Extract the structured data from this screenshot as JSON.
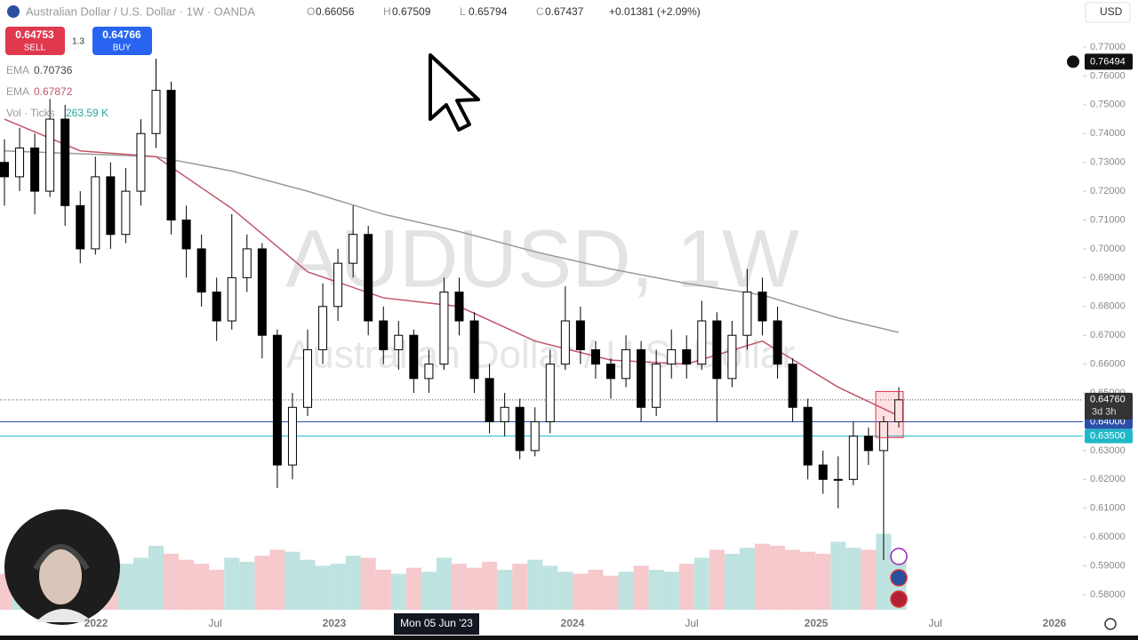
{
  "header": {
    "title": "Australian Dollar / U.S. Dollar · 1W · OANDA",
    "ohlc": [
      {
        "key": "O",
        "value": "0.66056"
      },
      {
        "key": "H",
        "value": "0.67509"
      },
      {
        "key": "L",
        "value": "0.65794"
      },
      {
        "key": "C",
        "value": "0.67437"
      }
    ],
    "change": "+0.01381 (+2.09%)",
    "currency": "USD"
  },
  "trade": {
    "sell_price": "0.64753",
    "sell_label": "SELL",
    "spread": "1.3",
    "buy_price": "0.64766",
    "buy_label": "BUY"
  },
  "indicators": [
    {
      "name": "EMA",
      "value": "0.70736"
    },
    {
      "name": "EMA",
      "value": "0.67872"
    },
    {
      "name": "Vol · Ticks",
      "value": "263.59 K"
    }
  ],
  "watermark": {
    "symbol": "AUDUSD, 1W",
    "name": "Australian Dollar / U.S. Dollar"
  },
  "chart": {
    "ylim": [
      0.58,
      0.77
    ],
    "yticks": [
      {
        "value": 0.77,
        "label": "0.77000"
      },
      {
        "value": 0.76,
        "label": "0.76000"
      },
      {
        "value": 0.75,
        "label": "0.75000"
      },
      {
        "value": 0.74,
        "label": "0.74000"
      },
      {
        "value": 0.73,
        "label": "0.73000"
      },
      {
        "value": 0.72,
        "label": "0.72000"
      },
      {
        "value": 0.71,
        "label": "0.71000"
      },
      {
        "value": 0.7,
        "label": "0.70000"
      },
      {
        "value": 0.69,
        "label": "0.69000"
      },
      {
        "value": 0.68,
        "label": "0.68000"
      },
      {
        "value": 0.67,
        "label": "0.67000"
      },
      {
        "value": 0.66,
        "label": "0.66000"
      },
      {
        "value": 0.65,
        "label": "0.65000"
      },
      {
        "value": 0.63,
        "label": "0.63000"
      },
      {
        "value": 0.62,
        "label": "0.62000"
      },
      {
        "value": 0.61,
        "label": "0.61000"
      },
      {
        "value": 0.6,
        "label": "0.60000"
      },
      {
        "value": 0.59,
        "label": "0.59000"
      },
      {
        "value": 0.58,
        "label": "0.58000"
      }
    ],
    "xlabels": [
      "2022",
      "Jul",
      "2023",
      "2024",
      "Jul",
      "2025",
      "Jul",
      "2026"
    ],
    "crosshair_date": "Mon 05 Jun '23",
    "candles": [
      [
        0.73,
        0.738,
        0.715,
        0.725
      ],
      [
        0.725,
        0.742,
        0.72,
        0.735
      ],
      [
        0.735,
        0.74,
        0.712,
        0.72
      ],
      [
        0.72,
        0.752,
        0.718,
        0.745
      ],
      [
        0.745,
        0.75,
        0.708,
        0.715
      ],
      [
        0.715,
        0.72,
        0.695,
        0.7
      ],
      [
        0.7,
        0.732,
        0.698,
        0.725
      ],
      [
        0.725,
        0.73,
        0.7,
        0.705
      ],
      [
        0.705,
        0.728,
        0.702,
        0.72
      ],
      [
        0.72,
        0.745,
        0.715,
        0.74
      ],
      [
        0.74,
        0.766,
        0.735,
        0.755
      ],
      [
        0.755,
        0.758,
        0.705,
        0.71
      ],
      [
        0.71,
        0.715,
        0.69,
        0.7
      ],
      [
        0.7,
        0.705,
        0.68,
        0.685
      ],
      [
        0.685,
        0.69,
        0.668,
        0.675
      ],
      [
        0.675,
        0.712,
        0.672,
        0.69
      ],
      [
        0.69,
        0.705,
        0.685,
        0.7
      ],
      [
        0.7,
        0.702,
        0.662,
        0.67
      ],
      [
        0.67,
        0.672,
        0.617,
        0.625
      ],
      [
        0.625,
        0.65,
        0.62,
        0.645
      ],
      [
        0.645,
        0.672,
        0.642,
        0.665
      ],
      [
        0.665,
        0.688,
        0.66,
        0.68
      ],
      [
        0.68,
        0.7,
        0.675,
        0.695
      ],
      [
        0.695,
        0.715,
        0.69,
        0.705
      ],
      [
        0.705,
        0.708,
        0.67,
        0.675
      ],
      [
        0.675,
        0.68,
        0.66,
        0.665
      ],
      [
        0.665,
        0.675,
        0.658,
        0.67
      ],
      [
        0.67,
        0.672,
        0.65,
        0.655
      ],
      [
        0.655,
        0.665,
        0.65,
        0.66
      ],
      [
        0.66,
        0.69,
        0.658,
        0.685
      ],
      [
        0.685,
        0.69,
        0.67,
        0.675
      ],
      [
        0.675,
        0.678,
        0.65,
        0.655
      ],
      [
        0.655,
        0.66,
        0.636,
        0.64
      ],
      [
        0.64,
        0.65,
        0.635,
        0.645
      ],
      [
        0.645,
        0.648,
        0.627,
        0.63
      ],
      [
        0.63,
        0.645,
        0.628,
        0.64
      ],
      [
        0.64,
        0.665,
        0.636,
        0.66
      ],
      [
        0.66,
        0.687,
        0.658,
        0.675
      ],
      [
        0.675,
        0.68,
        0.66,
        0.665
      ],
      [
        0.665,
        0.668,
        0.655,
        0.66
      ],
      [
        0.66,
        0.662,
        0.648,
        0.655
      ],
      [
        0.655,
        0.67,
        0.652,
        0.665
      ],
      [
        0.665,
        0.668,
        0.64,
        0.645
      ],
      [
        0.645,
        0.665,
        0.642,
        0.66
      ],
      [
        0.66,
        0.672,
        0.655,
        0.665
      ],
      [
        0.665,
        0.67,
        0.655,
        0.66
      ],
      [
        0.66,
        0.682,
        0.658,
        0.675
      ],
      [
        0.675,
        0.678,
        0.64,
        0.655
      ],
      [
        0.655,
        0.675,
        0.652,
        0.67
      ],
      [
        0.67,
        0.693,
        0.665,
        0.685
      ],
      [
        0.685,
        0.69,
        0.67,
        0.675
      ],
      [
        0.675,
        0.68,
        0.655,
        0.66
      ],
      [
        0.66,
        0.662,
        0.64,
        0.645
      ],
      [
        0.645,
        0.648,
        0.62,
        0.625
      ],
      [
        0.625,
        0.63,
        0.615,
        0.62
      ],
      [
        0.62,
        0.628,
        0.61,
        0.62
      ],
      [
        0.62,
        0.64,
        0.618,
        0.635
      ],
      [
        0.635,
        0.638,
        0.625,
        0.63
      ],
      [
        0.63,
        0.642,
        0.592,
        0.64
      ],
      [
        0.64,
        0.652,
        0.638,
        0.6476
      ]
    ],
    "volume": [
      180,
      220,
      200,
      260,
      300,
      240,
      210,
      190,
      230,
      260,
      320,
      280,
      250,
      230,
      200,
      260,
      240,
      270,
      300,
      290,
      250,
      220,
      230,
      270,
      260,
      200,
      180,
      210,
      190,
      260,
      230,
      210,
      240,
      200,
      230,
      250,
      220,
      190,
      180,
      200,
      170,
      190,
      220,
      200,
      190,
      230,
      260,
      300,
      280,
      310,
      330,
      320,
      300,
      290,
      280,
      340,
      310,
      300,
      380,
      263.59
    ],
    "ema_fast": {
      "color": "#c2566b",
      "index": [
        0,
        5,
        10,
        15,
        20,
        25,
        30,
        35,
        40,
        45,
        50,
        55,
        59
      ],
      "values": [
        0.745,
        0.734,
        0.732,
        0.714,
        0.692,
        0.683,
        0.68,
        0.668,
        0.6614,
        0.66,
        0.668,
        0.652,
        0.642
      ]
    },
    "ema_slow": {
      "color": "#9a9a9a",
      "index": [
        0,
        5,
        10,
        15,
        20,
        25,
        30,
        35,
        40,
        45,
        50,
        55,
        59
      ],
      "values": [
        0.734,
        0.733,
        0.732,
        0.727,
        0.72,
        0.712,
        0.706,
        0.699,
        0.693,
        0.688,
        0.684,
        0.676,
        0.671
      ]
    },
    "price_flag": {
      "value": 0.76494,
      "label": "0.76494"
    },
    "last_price": {
      "value": 0.6476,
      "label": "0.64760",
      "countdown": "3d 3h"
    },
    "levels": [
      {
        "value": 0.64,
        "label": "0.64000",
        "color": "#2b4fa8"
      },
      {
        "value": 0.635,
        "label": "0.63500",
        "color": "#1fb8c9"
      }
    ]
  }
}
